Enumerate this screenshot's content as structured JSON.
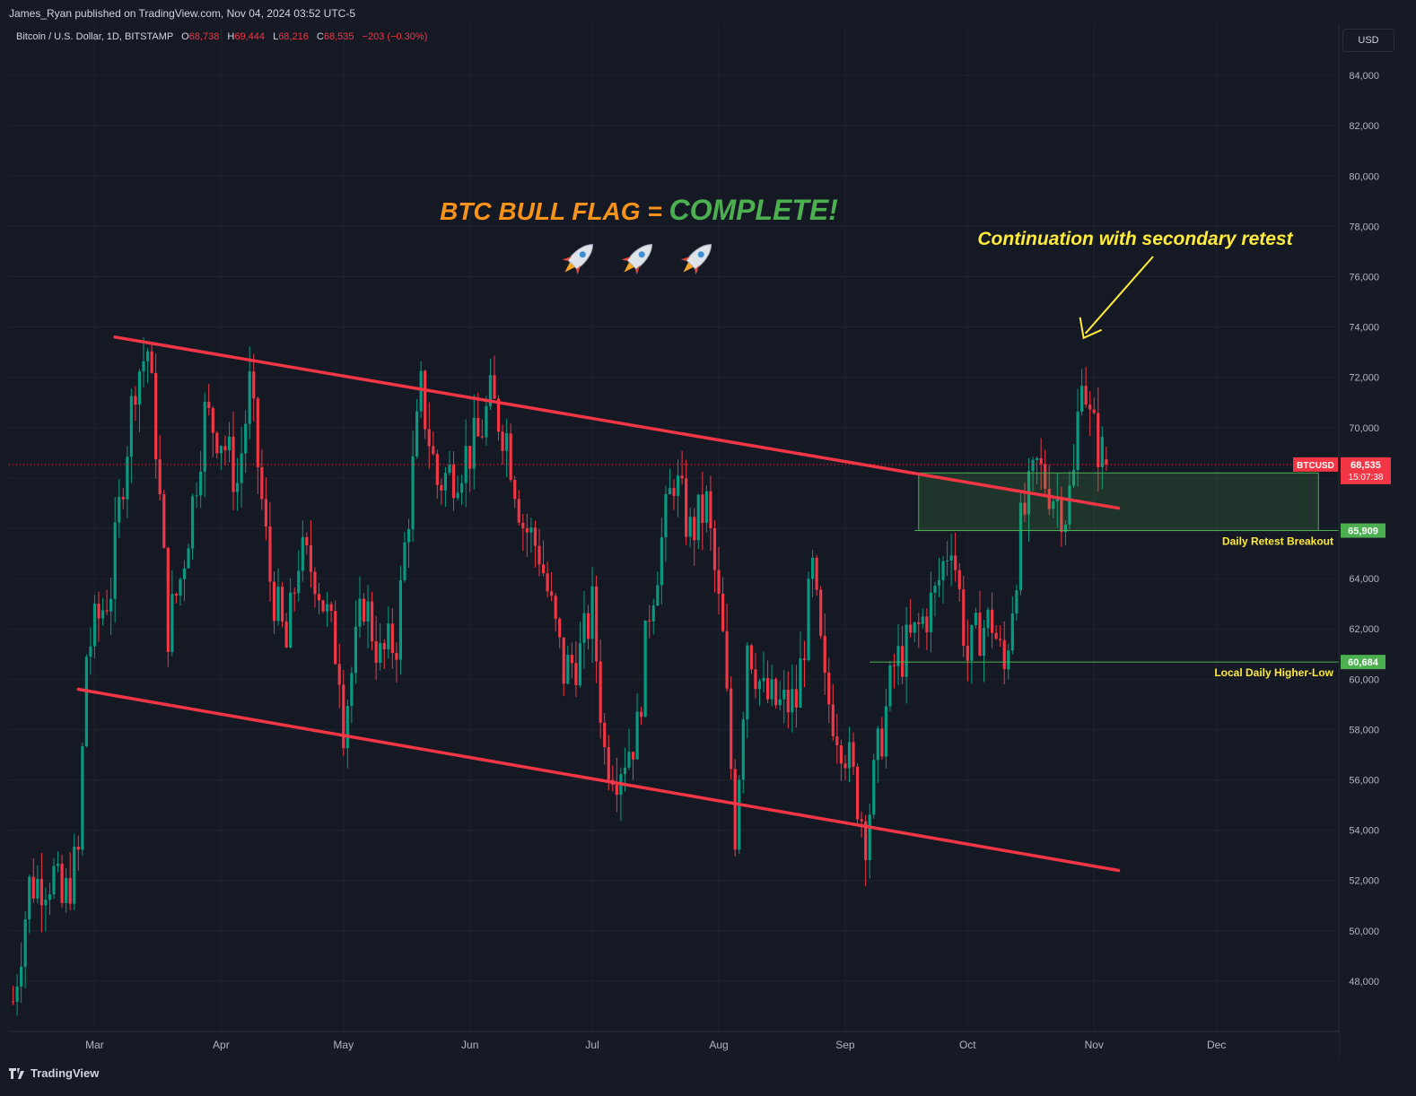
{
  "header": {
    "published": "James_Ryan published on TradingView.com, Nov 04, 2024 03:52 UTC-5"
  },
  "legend": {
    "symbol": "Bitcoin / U.S. Dollar, 1D, BITSTAMP",
    "o_label": "O",
    "o_value": "68,738",
    "h_label": "H",
    "h_value": "69,444",
    "l_label": "L",
    "l_value": "68,216",
    "c_label": "C",
    "c_value": "68,535",
    "change": "−203 (−0.30%)"
  },
  "currency_button": "USD",
  "footer": {
    "brand": "TradingView"
  },
  "colors": {
    "up": "#089981",
    "down": "#f23645",
    "channel": "#f23645",
    "zone": "#4caf50",
    "annotation": "#ffeb3b",
    "title_orange": "#f7931a",
    "title_green": "#4caf50"
  },
  "chart_data": {
    "type": "candlestick",
    "title": "BTC BULL FLAG = COMPLETE!",
    "title_part1": "BTC BULL FLAG = ",
    "title_part2": "COMPLETE!",
    "title_icons": [
      "rocket-icon",
      "rocket-icon",
      "rocket-icon"
    ],
    "ylim": [
      46000,
      86000
    ],
    "y_ticks": [
      48000,
      50000,
      52000,
      54000,
      56000,
      58000,
      60000,
      62000,
      64000,
      66000,
      68000,
      70000,
      72000,
      74000,
      76000,
      78000,
      80000,
      82000,
      84000
    ],
    "y_tick_labels": [
      "48,000",
      "50,000",
      "52,000",
      "54,000",
      "56,000",
      "58,000",
      "60,000",
      "62,000",
      "64,000",
      "66,000",
      "68,000",
      "70,000",
      "72,000",
      "74,000",
      "76,000",
      "78,000",
      "80,000",
      "82,000",
      "84,000"
    ],
    "x_tick_labels": [
      "Mar",
      "Apr",
      "May",
      "Jun",
      "Jul",
      "Aug",
      "Sep",
      "Oct",
      "Nov",
      "Dec"
    ],
    "x_tick_dates": [
      "2024-03-01",
      "2024-04-01",
      "2024-05-01",
      "2024-06-01",
      "2024-07-01",
      "2024-08-01",
      "2024-09-01",
      "2024-10-01",
      "2024-11-01",
      "2024-12-01"
    ],
    "x_range": [
      "2024-02-09",
      "2024-12-31"
    ],
    "grid": true,
    "current_price": {
      "label": "BTCUSD",
      "value": "68,535",
      "countdown": "15:07:38"
    },
    "channel_upper": {
      "start": [
        "2024-03-06",
        73600
      ],
      "end": [
        "2024-11-07",
        66800
      ]
    },
    "channel_lower": {
      "start": [
        "2024-02-26",
        59600
      ],
      "end": [
        "2024-11-07",
        52400
      ]
    },
    "levels": [
      {
        "name": "Daily Retest Breakout",
        "value": 65909,
        "label": "65,909",
        "from": "2024-09-18"
      },
      {
        "name": "Local Daily Higher-Low",
        "value": 60684,
        "label": "60,684",
        "from": "2024-09-07"
      }
    ],
    "zone": {
      "from": "2024-09-19",
      "to": "2024-12-26",
      "low": 65909,
      "high": 68200
    },
    "annotation": {
      "text": "Continuation with secondary retest",
      "target": [
        "2024-10-29",
        73600
      ]
    },
    "candles_anchor_dates": [
      "2024-02-10",
      "2024-11-04"
    ],
    "price_path": [
      [
        "2024-02-10",
        47200
      ],
      [
        "2024-02-14",
        51800
      ],
      [
        "2024-02-20",
        52200
      ],
      [
        "2024-02-22",
        51000
      ],
      [
        "2024-02-26",
        53000
      ],
      [
        "2024-02-28",
        61000
      ],
      [
        "2024-03-01",
        62000
      ],
      [
        "2024-03-05",
        63700
      ],
      [
        "2024-03-08",
        68200
      ],
      [
        "2024-03-11",
        72000
      ],
      [
        "2024-03-14",
        73100
      ],
      [
        "2024-03-16",
        69500
      ],
      [
        "2024-03-19",
        62000
      ],
      [
        "2024-03-22",
        64000
      ],
      [
        "2024-03-25",
        67000
      ],
      [
        "2024-03-28",
        70500
      ],
      [
        "2024-04-01",
        69700
      ],
      [
        "2024-04-05",
        67800
      ],
      [
        "2024-04-08",
        71600
      ],
      [
        "2024-04-13",
        64000
      ],
      [
        "2024-04-17",
        61200
      ],
      [
        "2024-04-20",
        64900
      ],
      [
        "2024-04-24",
        64300
      ],
      [
        "2024-04-30",
        60600
      ],
      [
        "2024-05-01",
        58300
      ],
      [
        "2024-05-06",
        63200
      ],
      [
        "2024-05-10",
        60800
      ],
      [
        "2024-05-14",
        61600
      ],
      [
        "2024-05-16",
        65200
      ],
      [
        "2024-05-20",
        71400
      ],
      [
        "2024-05-24",
        67800
      ],
      [
        "2024-05-28",
        68300
      ],
      [
        "2024-06-03",
        69500
      ],
      [
        "2024-06-06",
        71100
      ],
      [
        "2024-06-10",
        69700
      ],
      [
        "2024-06-14",
        66200
      ],
      [
        "2024-06-18",
        65100
      ],
      [
        "2024-06-24",
        60300
      ],
      [
        "2024-06-28",
        61000
      ],
      [
        "2024-07-01",
        62800
      ],
      [
        "2024-07-04",
        57100
      ],
      [
        "2024-07-07",
        56500
      ],
      [
        "2024-07-12",
        57900
      ],
      [
        "2024-07-15",
        62900
      ],
      [
        "2024-07-21",
        68100
      ],
      [
        "2024-07-25",
        65800
      ],
      [
        "2024-07-29",
        66900
      ],
      [
        "2024-08-02",
        61500
      ],
      [
        "2024-08-05",
        54000
      ],
      [
        "2024-08-08",
        61700
      ],
      [
        "2024-08-12",
        59300
      ],
      [
        "2024-08-16",
        58900
      ],
      [
        "2024-08-20",
        59100
      ],
      [
        "2024-08-24",
        64200
      ],
      [
        "2024-08-27",
        59500
      ],
      [
        "2024-09-01",
        57300
      ],
      [
        "2024-09-06",
        53900
      ],
      [
        "2024-09-09",
        57000
      ],
      [
        "2024-09-13",
        60500
      ],
      [
        "2024-09-18",
        61700
      ],
      [
        "2024-09-23",
        63300
      ],
      [
        "2024-09-27",
        65800
      ],
      [
        "2024-10-01",
        60800
      ],
      [
        "2024-10-04",
        62000
      ],
      [
        "2024-10-07",
        62300
      ],
      [
        "2024-10-10",
        60300
      ],
      [
        "2024-10-14",
        66000
      ],
      [
        "2024-10-18",
        68400
      ],
      [
        "2024-10-22",
        67400
      ],
      [
        "2024-10-25",
        66700
      ],
      [
        "2024-10-27",
        68000
      ],
      [
        "2024-10-29",
        72700
      ],
      [
        "2024-10-31",
        70200
      ],
      [
        "2024-11-02",
        69300
      ],
      [
        "2024-11-04",
        68535
      ]
    ]
  }
}
